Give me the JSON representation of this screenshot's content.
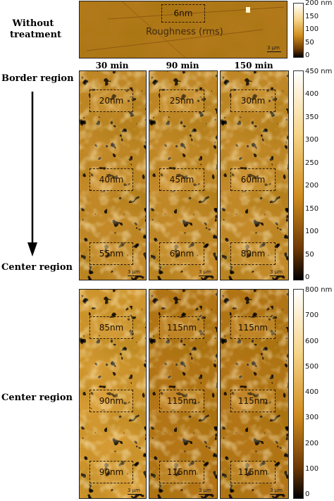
{
  "row_labels": {
    "without": [
      "Without",
      "treatment"
    ],
    "border": "Border region",
    "center": "Center region",
    "center2": "Center region"
  },
  "columns": [
    "30 min",
    "90 min",
    "150 min"
  ],
  "top_panel": {
    "value": "6nm",
    "caption": "Roughness (rms)",
    "scale": "3 μm"
  },
  "group1": [
    {
      "values": [
        "20nm",
        "40nm",
        "55nm"
      ],
      "scale": "3 μm"
    },
    {
      "values": [
        "25nm",
        "45nm",
        "60nm"
      ],
      "scale": "3 μm"
    },
    {
      "values": [
        "30nm",
        "60nm",
        "80nm"
      ],
      "scale": "3 μm"
    }
  ],
  "group2": [
    {
      "values": [
        "85nm",
        "90nm",
        "90nm"
      ],
      "scale": "3 μm"
    },
    {
      "values": [
        "115nm",
        "115nm",
        "115nm"
      ],
      "scale": "3 μm"
    },
    {
      "values": [
        "115nm",
        "115nm",
        "115nm"
      ],
      "scale": "3 μm"
    }
  ],
  "colorbars": {
    "top": [
      "200 nm",
      "150",
      "100",
      "50",
      "0"
    ],
    "mid": [
      "450 nm",
      "400",
      "350",
      "300",
      "250",
      "200",
      "150",
      "100",
      "50",
      "0"
    ],
    "bottom": [
      "800 nm",
      "700",
      "600",
      "500",
      "400",
      "300",
      "200",
      "100",
      "0"
    ]
  },
  "colors": {
    "frame": "#222222",
    "accent": "#c88a2a"
  }
}
